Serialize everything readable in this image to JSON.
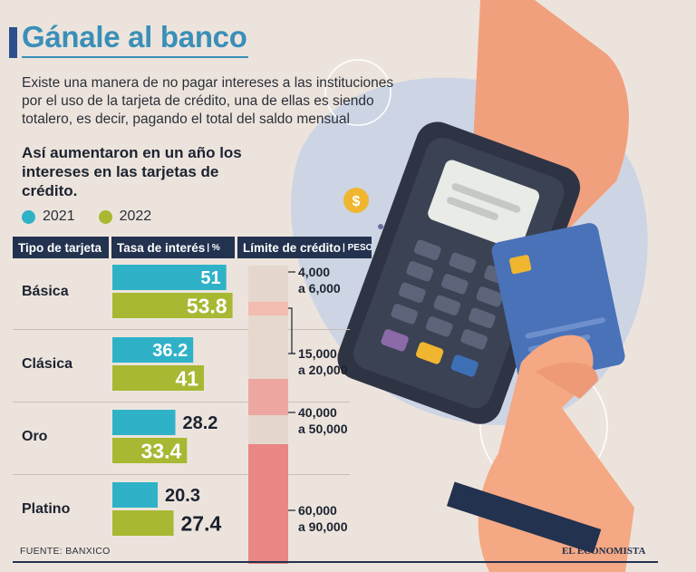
{
  "header": {
    "title": "Gánale al banco",
    "intro": "Existe una manera de no pagar intereses a las instituciones por el uso de la tarjeta de crédito, una de ellas es siendo totalero, es decir, pagando el total del saldo mensual",
    "subtitle": "Así aumentaron en un año los intereses en las tarjetas de crédito."
  },
  "colors": {
    "s2021": "#2fb2c8",
    "s2022": "#a8b832",
    "navy": "#22324f"
  },
  "chart_data": {
    "type": "bar",
    "orientation": "horizontal",
    "categories": [
      "Básica",
      "Clásica",
      "Oro",
      "Platino"
    ],
    "series": [
      {
        "name": "2021",
        "values": [
          51,
          36.2,
          28.2,
          20.3
        ]
      },
      {
        "name": "2022",
        "values": [
          53.8,
          41,
          33.4,
          27.4
        ]
      }
    ],
    "columns": {
      "type": "Tipo de tarjeta",
      "rate": "Tasa de interés",
      "rate_unit": "| %",
      "limit": "Límite de crédito",
      "limit_unit": "| PESOS"
    },
    "credit_limits": [
      "4,000 a 6,000",
      "15,000 a 20,000",
      "40,000 a 50,000",
      "60,000 a 90,000"
    ],
    "xlim": [
      0,
      56
    ]
  },
  "footer": {
    "source": "FUENTE: BANXICO",
    "brand": "EL ECONOMISTA"
  }
}
